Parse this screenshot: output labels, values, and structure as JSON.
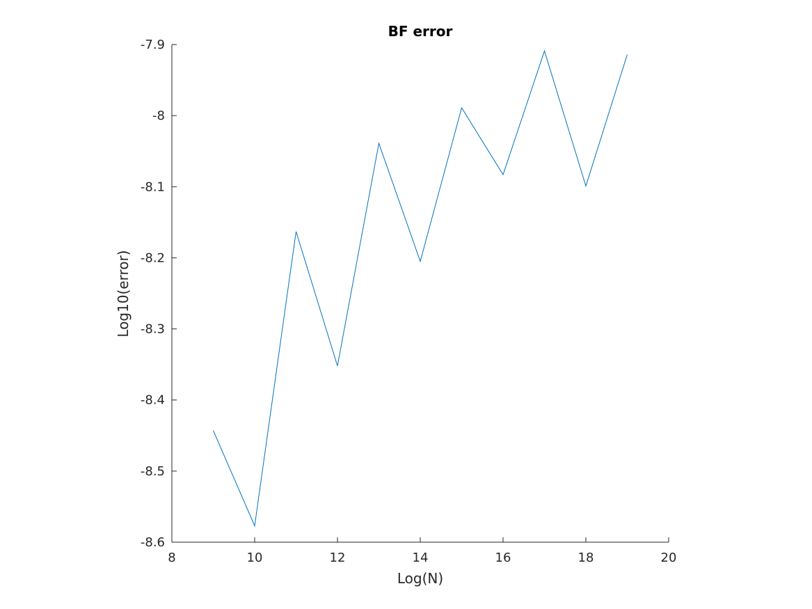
{
  "chart_data": {
    "type": "line",
    "title": "BF error",
    "xlabel": "Log(N)",
    "ylabel": "Log10(error)",
    "xlim": [
      8,
      20
    ],
    "ylim": [
      -8.6,
      -7.9
    ],
    "xticks": [
      8,
      10,
      12,
      14,
      16,
      18,
      20
    ],
    "yticks": [
      -8.6,
      -8.5,
      -8.4,
      -8.3,
      -8.2,
      -8.1,
      -8,
      -7.9
    ],
    "xtick_labels": [
      "8",
      "10",
      "12",
      "14",
      "16",
      "18",
      "20"
    ],
    "ytick_labels": [
      "-8.6",
      "-8.5",
      "-8.4",
      "-8.3",
      "-8.2",
      "-8.1",
      "-8",
      "-7.9"
    ],
    "grid": false,
    "line_color": "#0072bd",
    "axis_color": "#262626",
    "series": [
      {
        "x": [
          9,
          10,
          11,
          12,
          13,
          14,
          15,
          16,
          17,
          18,
          19
        ],
        "y": [
          -8.443,
          -8.577,
          -8.163,
          -8.352,
          -8.039,
          -8.205,
          -7.989,
          -8.083,
          -7.909,
          -8.099,
          -7.914
        ]
      }
    ]
  }
}
